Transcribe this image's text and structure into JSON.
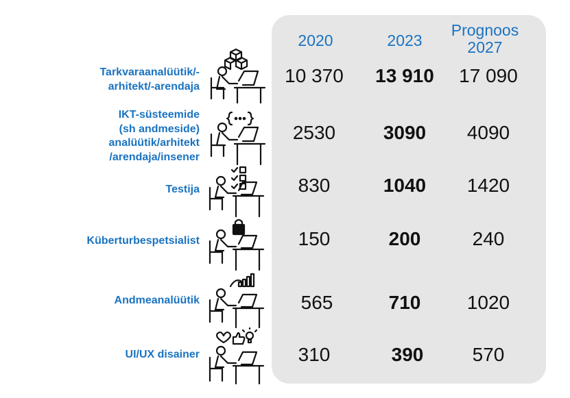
{
  "chart_data": {
    "type": "table",
    "columns": [
      {
        "label_lines": [
          "2020"
        ]
      },
      {
        "label_lines": [
          "2023"
        ]
      },
      {
        "label_lines": [
          "Prognoos",
          "2027"
        ]
      }
    ],
    "rows": [
      {
        "label": "Tarkvaraanalüütik/-\narhitekt/-arendaja",
        "icon": "developer-cubes-icon",
        "values": [
          "10 370",
          "13 910",
          "17 090"
        ]
      },
      {
        "label": "IKT-süsteemide\n(sh andmeside)\nanalüütik/arhitekt\n/arendaja/insener",
        "icon": "developer-code-braces-icon",
        "values": [
          "2530",
          "3090",
          "4090"
        ]
      },
      {
        "label": "Testija",
        "icon": "tester-checklist-icon",
        "values": [
          "830",
          "1040",
          "1420"
        ]
      },
      {
        "label": "Küberturbespetsialist",
        "icon": "security-lock-icon",
        "values": [
          "150",
          "200",
          "240"
        ]
      },
      {
        "label": "Andmeanalüütik",
        "icon": "data-chart-icon",
        "values": [
          "565",
          "710",
          "1020"
        ]
      },
      {
        "label": "UI/UX disainer",
        "icon": "designer-heart-like-bulb-icon",
        "values": [
          "310",
          "390",
          "570"
        ]
      }
    ],
    "bold_column": 1,
    "colors": {
      "accent": "#1a73c1",
      "panel": "#e6e6e6",
      "text": "#111111"
    }
  }
}
